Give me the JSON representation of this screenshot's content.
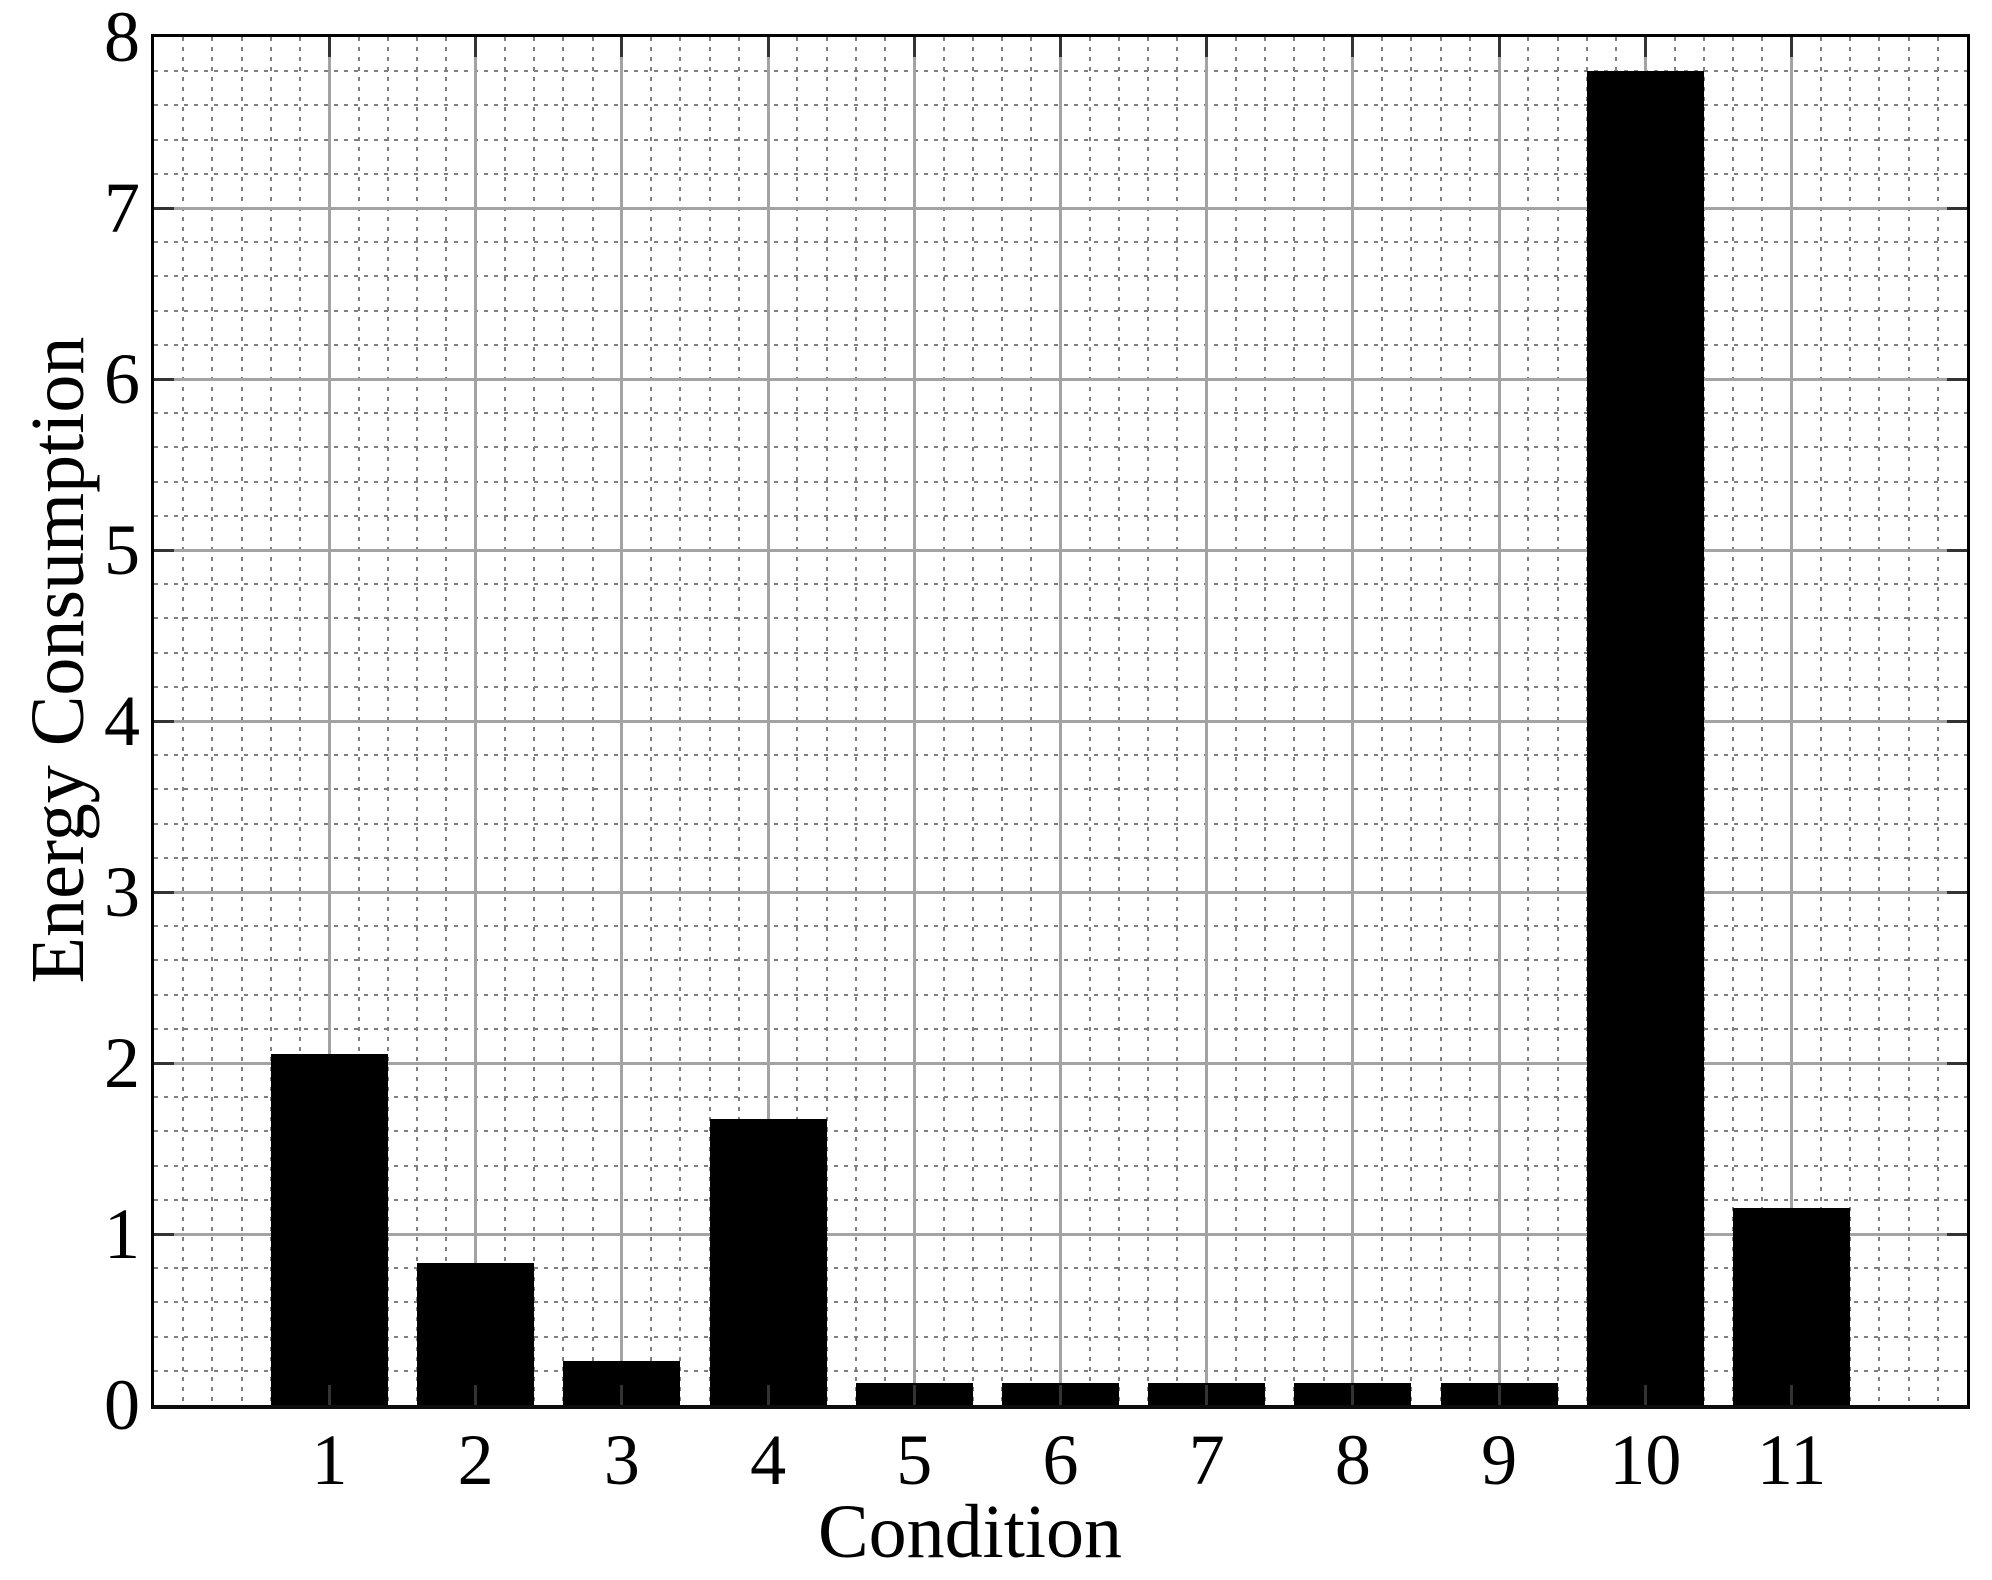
{
  "figure": {
    "background": "#ffffff"
  },
  "chart_data": {
    "type": "bar",
    "title": "",
    "xlabel": "Condition",
    "ylabel": "Energy Consumption",
    "categories": [
      "1",
      "2",
      "3",
      "4",
      "5",
      "6",
      "7",
      "8",
      "9",
      "10",
      "11"
    ],
    "values": [
      2.05,
      0.83,
      0.26,
      1.67,
      0.13,
      0.13,
      0.13,
      0.13,
      0.13,
      7.8,
      1.15
    ],
    "xlim": [
      -0.2,
      12.2
    ],
    "ylim": [
      0,
      8
    ],
    "xticks": [
      1,
      2,
      3,
      4,
      5,
      6,
      7,
      8,
      9,
      10,
      11
    ],
    "yticks": [
      0,
      1,
      2,
      3,
      4,
      5,
      6,
      7,
      8
    ],
    "ytick_labels": [
      "0",
      "1",
      "2",
      "3",
      "4",
      "5",
      "6",
      "7",
      "8"
    ],
    "bar_width_fraction": 0.8,
    "minor_grid_step": 0.2,
    "legend": null,
    "grid": {
      "major": "solid",
      "minor": "dotted",
      "visible": true
    },
    "colors": {
      "bar": "#000000",
      "major_grid": "#a3a3a3",
      "minor_grid": "#7f7f7f",
      "frame": "#000000",
      "tick_mark": "#333333",
      "text": "#000000",
      "background": "#ffffff"
    }
  }
}
